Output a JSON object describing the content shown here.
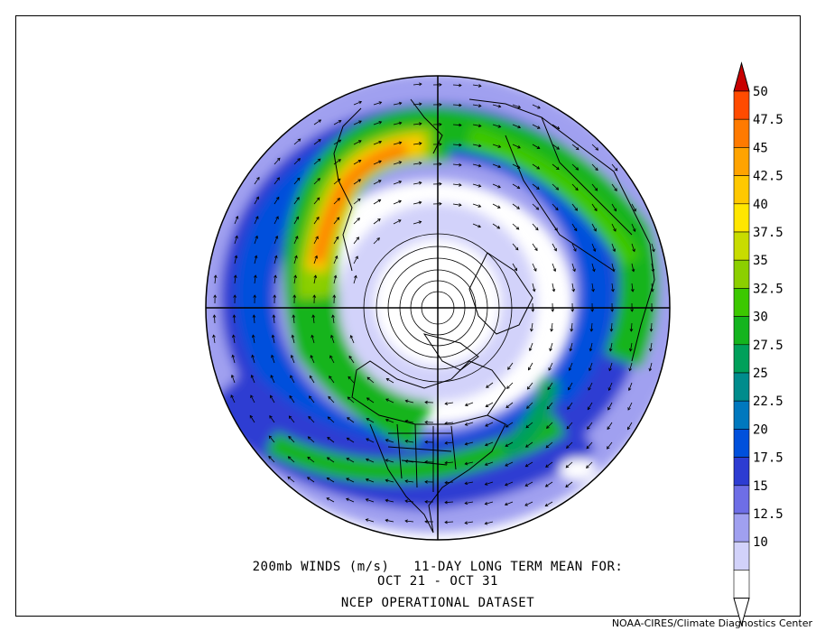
{
  "caption": {
    "line1": "200mb WINDS (m/s)   11-DAY LONG TERM MEAN FOR:",
    "line2": "OCT 21 - OCT 31",
    "line3": "NCEP OPERATIONAL DATASET"
  },
  "credit": "NOAA-CIRES/Climate Diagnostics Center",
  "colorbar": {
    "labels": [
      "50",
      "47.5",
      "45",
      "42.5",
      "40",
      "37.5",
      "35",
      "32.5",
      "30",
      "27.5",
      "25",
      "22.5",
      "20",
      "17.5",
      "15",
      "12.5",
      "10"
    ],
    "colors": [
      "#ff4b00",
      "#ff7a00",
      "#ffa300",
      "#ffc800",
      "#ffe600",
      "#c8dc00",
      "#8ccf00",
      "#3cc800",
      "#14b41e",
      "#00a05a",
      "#008c8c",
      "#0078be",
      "#0050dc",
      "#2d3cd2",
      "#6e6ee6",
      "#a0a0f0",
      "#d2d2fa",
      "#ffffff"
    ],
    "top_color": "#c80000",
    "bottom_color": "#ffffff"
  }
}
